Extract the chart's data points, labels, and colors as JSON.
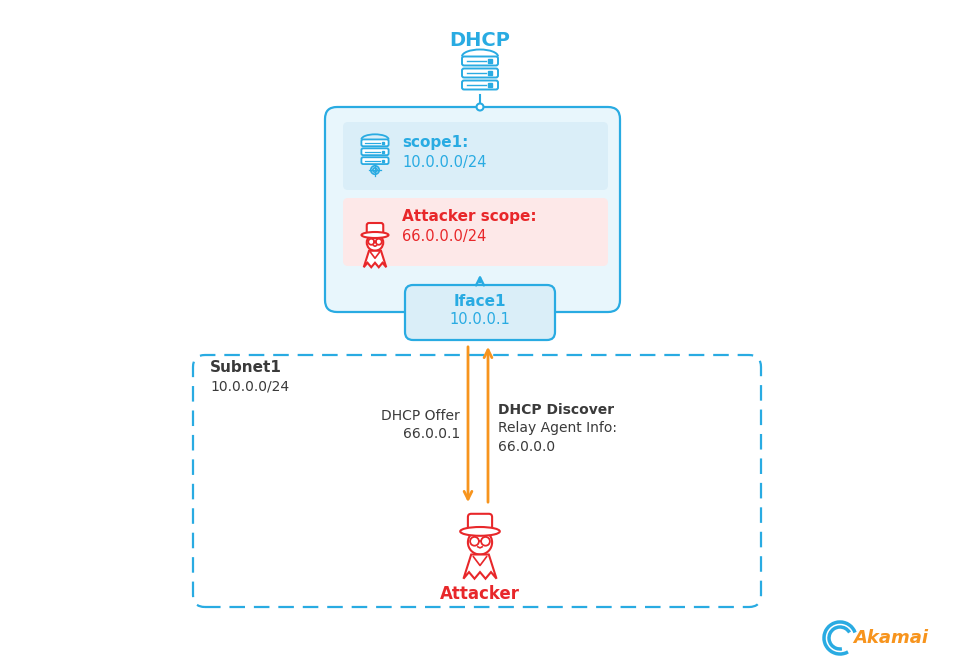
{
  "bg_color": "#ffffff",
  "blue": "#29abe2",
  "light_blue_bg": "#e8f6fc",
  "scope1_bg": "#daeef8",
  "attacker_bg": "#fde8e8",
  "red": "#e8272a",
  "orange": "#f7941d",
  "dark": "#3a3a3a",
  "dhcp_label": "DHCP",
  "scope1_label": "scope1:",
  "scope1_ip": "10.0.0.0/24",
  "attacker_scope_label": "Attacker scope:",
  "attacker_scope_ip": "66.0.0.0/24",
  "iface1_label": "Iface1",
  "iface1_ip": "10.0.0.1",
  "subnet1_label": "Subnet1",
  "subnet1_ip": "10.0.0.0/24",
  "dhcp_offer_label": "DHCP Offer",
  "dhcp_offer_ip": "66.0.0.1",
  "dhcp_discover_label": "DHCP Discover",
  "relay_agent_label": "Relay Agent Info:",
  "relay_agent_ip": "66.0.0.0",
  "attacker_label": "Attacker",
  "akamai_label": "Akamai"
}
